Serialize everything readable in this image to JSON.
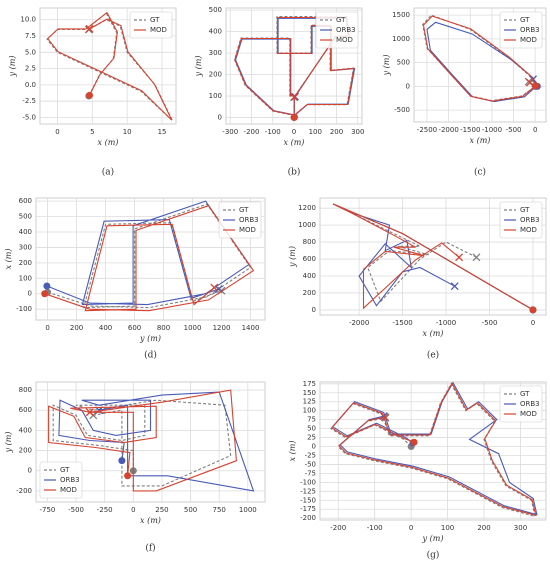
{
  "chart_data": [
    {
      "type": "line",
      "label": "(a)",
      "xlabel": "x (m)",
      "ylabel": "y (m)",
      "legend": "upper right",
      "grid": true,
      "xlim": [
        -2.5,
        17
      ],
      "ylim": [
        -6,
        11.8
      ],
      "xticks": [
        0,
        5,
        10,
        15
      ],
      "yticks": [
        {
          "value": -5,
          "label": "-5.0"
        },
        -2.5,
        {
          "value": 0,
          "label": "0.0"
        },
        2.5,
        {
          "value": 5,
          "label": "5.0"
        },
        7.5,
        {
          "value": 10,
          "label": "10.0"
        }
      ],
      "series": [
        {
          "name": "GT",
          "color": "#7f7f7f",
          "linestyle": "dashed",
          "x": [
            4.5,
            6,
            8,
            8.5,
            7,
            4,
            0,
            -1.5,
            0,
            4,
            8,
            12,
            16.5,
            14,
            10,
            9,
            7,
            4.5
          ],
          "values": [
            -1.7,
            1.5,
            4,
            8,
            11,
            8.5,
            8.5,
            7,
            5,
            3,
            1,
            -1,
            -5.5,
            0,
            5,
            9,
            10,
            8.5
          ]
        },
        {
          "name": "MOD",
          "color": "#d6432f",
          "linestyle": "solid",
          "x": [
            4.6,
            6.1,
            8.1,
            8.6,
            7.1,
            4.1,
            0.1,
            -1.4,
            0.1,
            4.1,
            8.1,
            12.1,
            16.4,
            13.9,
            10.1,
            9.1,
            7.1,
            4.6
          ],
          "values": [
            -1.6,
            1.6,
            4.1,
            8.1,
            11.1,
            8.6,
            8.6,
            7.1,
            5.1,
            3.1,
            1.1,
            -0.9,
            -5.4,
            0.1,
            5.1,
            9.1,
            10.1,
            8.6
          ]
        }
      ]
    },
    {
      "type": "line",
      "label": "(b)",
      "xlabel": "x (m)",
      "ylabel": "y (m)",
      "legend": "upper right",
      "grid": true,
      "xlim": [
        -320,
        320
      ],
      "ylim": [
        -30,
        510
      ],
      "xticks": [
        -300,
        -200,
        -100,
        0,
        100,
        200,
        300
      ],
      "yticks": [
        0,
        100,
        200,
        300,
        400,
        500
      ],
      "series": [
        {
          "name": "GT",
          "color": "#7f7f7f",
          "linestyle": "dashed",
          "x": [
            0,
            0,
            -20,
            -20,
            -250,
            -280,
            -230,
            -100,
            0,
            60,
            250,
            280,
            170,
            170,
            80,
            80,
            -80,
            -80,
            250,
            260,
            200,
            0
          ],
          "values": [
            0,
            100,
            100,
            370,
            370,
            270,
            150,
            30,
            10,
            60,
            60,
            230,
            220,
            430,
            430,
            300,
            300,
            470,
            470,
            380,
            380,
            95
          ]
        },
        {
          "name": "ORB3",
          "color": "#4a5bb7",
          "linestyle": "solid",
          "x": [
            2,
            2,
            -15,
            -15,
            -245,
            -275,
            -225,
            -95,
            5,
            65,
            255,
            285,
            175,
            175,
            85,
            85,
            -75,
            -75,
            245,
            255,
            195,
            5
          ],
          "values": [
            2,
            102,
            102,
            365,
            365,
            268,
            152,
            32,
            12,
            62,
            62,
            228,
            218,
            425,
            425,
            298,
            298,
            462,
            462,
            378,
            378,
            97
          ]
        },
        {
          "name": "MOD",
          "color": "#d6432f",
          "linestyle": "solid",
          "x": [
            1,
            1,
            -18,
            -18,
            -248,
            -278,
            -228,
            -98,
            2,
            62,
            252,
            282,
            172,
            172,
            82,
            82,
            -78,
            -78,
            248,
            258,
            198,
            2
          ],
          "values": [
            1,
            101,
            101,
            368,
            368,
            269,
            151,
            31,
            11,
            61,
            61,
            229,
            219,
            428,
            428,
            299,
            299,
            466,
            466,
            379,
            379,
            96
          ]
        }
      ]
    },
    {
      "type": "line",
      "label": "(c)",
      "xlabel": "x (m)",
      "ylabel": "y (m)",
      "legend": "upper right",
      "grid": true,
      "xlim": [
        -2800,
        250
      ],
      "ylim": [
        -750,
        1650
      ],
      "xticks": [
        -2500,
        -2000,
        -1500,
        -1000,
        -500,
        0
      ],
      "yticks": [
        -500,
        0,
        500,
        1000,
        1500
      ],
      "series": [
        {
          "name": "GT",
          "color": "#7f7f7f",
          "linestyle": "dashed",
          "x": [
            0,
            -100,
            -600,
            -1500,
            -2400,
            -2600,
            -2500,
            -2000,
            -1500,
            -1000,
            -300,
            0,
            -150
          ],
          "values": [
            0,
            200,
            600,
            1200,
            1500,
            1300,
            800,
            300,
            -200,
            -300,
            -200,
            0,
            100
          ]
        },
        {
          "name": "ORB3",
          "color": "#4a5bb7",
          "linestyle": "solid",
          "x": [
            50,
            -50,
            -550,
            -1450,
            -2300,
            -2500,
            -2420,
            -1950,
            -1450,
            -950,
            -250,
            50,
            -50
          ],
          "values": [
            0,
            180,
            560,
            1100,
            1350,
            1200,
            760,
            280,
            -220,
            -320,
            -220,
            20,
            150
          ]
        },
        {
          "name": "MOD",
          "color": "#d6432f",
          "linestyle": "solid",
          "x": [
            10,
            -90,
            -590,
            -1490,
            -2380,
            -2580,
            -2480,
            -1990,
            -1490,
            -990,
            -290,
            10,
            -120
          ],
          "values": [
            10,
            210,
            610,
            1210,
            1480,
            1290,
            790,
            290,
            -210,
            -310,
            -210,
            10,
            80
          ]
        }
      ]
    },
    {
      "type": "line",
      "label": "(d)",
      "xlabel": "y (m)",
      "ylabel": "x (m)",
      "legend": "upper right",
      "grid": true,
      "xlim": [
        -80,
        1500
      ],
      "ylim": [
        -170,
        620
      ],
      "xticks": [
        0,
        200,
        400,
        600,
        800,
        1000,
        1200,
        1400
      ],
      "yticks": [
        -100,
        0,
        100,
        200,
        300,
        400,
        500,
        600
      ],
      "series": [
        {
          "name": "GT",
          "color": "#7f7f7f",
          "linestyle": "dashed",
          "x": [
            0,
            300,
            700,
            1100,
            1400,
            1100,
            600,
            600,
            250,
            400,
            850,
            1000,
            1200
          ],
          "values": [
            10,
            -80,
            -90,
            -20,
            170,
            580,
            420,
            -80,
            -90,
            450,
            460,
            -50,
            20
          ]
        },
        {
          "name": "ORB3",
          "color": "#4a5bb7",
          "linestyle": "solid",
          "x": [
            -5,
            290,
            690,
            1090,
            1390,
            1090,
            590,
            590,
            240,
            390,
            840,
            990,
            1180
          ],
          "values": [
            50,
            -60,
            -70,
            0,
            190,
            600,
            440,
            -60,
            -70,
            470,
            480,
            -30,
            30
          ]
        },
        {
          "name": "MOD",
          "color": "#d6432f",
          "linestyle": "solid",
          "x": [
            -20,
            290,
            700,
            1110,
            1420,
            1110,
            610,
            610,
            260,
            410,
            860,
            1010,
            1150
          ],
          "values": [
            0,
            -100,
            -110,
            -40,
            150,
            570,
            410,
            -100,
            -110,
            440,
            450,
            -70,
            40
          ]
        }
      ]
    },
    {
      "type": "line",
      "label": "(e)",
      "xlabel": "x (m)",
      "ylabel": "y (m)",
      "legend": "upper right",
      "grid": true,
      "xlim": [
        -2450,
        150
      ],
      "ylim": [
        -60,
        1320
      ],
      "xticks": [
        -2000,
        -1500,
        -1000,
        -500,
        0
      ],
      "yticks": [
        0,
        200,
        400,
        600,
        800,
        1000,
        1200
      ],
      "series": [
        {
          "name": "GT",
          "color": "#7f7f7f",
          "linestyle": "dashed",
          "x": [
            0,
            -500,
            -1000,
            -1500,
            -2300,
            -2100,
            -1600,
            -1300,
            -1550,
            -1200,
            -1650,
            -1900,
            -1750,
            -1300,
            -1000,
            -650
          ],
          "values": [
            0,
            300,
            600,
            900,
            1250,
            1150,
            900,
            750,
            750,
            650,
            700,
            500,
            100,
            600,
            800,
            620
          ]
        },
        {
          "name": "ORB3",
          "color": "#4a5bb7",
          "linestyle": "solid",
          "x": [
            0,
            -500,
            -1000,
            -1500,
            -2300,
            -2100,
            -1650,
            -1700,
            -1450,
            -1400,
            -1700,
            -2000,
            -1800,
            -1500,
            -1300,
            -900
          ],
          "values": [
            0,
            300,
            600,
            900,
            1250,
            1150,
            1000,
            700,
            820,
            500,
            780,
            400,
            50,
            450,
            500,
            280
          ]
        },
        {
          "name": "MOD",
          "color": "#d6432f",
          "linestyle": "solid",
          "x": [
            0,
            -500,
            -1000,
            -1500,
            -2300,
            -2100,
            -1600,
            -1350,
            -1600,
            -1250,
            -1700,
            -1950,
            -1950,
            -1350,
            -1050,
            -850
          ],
          "values": [
            0,
            300,
            600,
            900,
            1250,
            1150,
            880,
            740,
            740,
            640,
            690,
            480,
            20,
            590,
            790,
            620
          ]
        }
      ]
    },
    {
      "type": "line",
      "label": "(f)",
      "xlabel": "x (m)",
      "ylabel": "y (m)",
      "legend": "lower left",
      "grid": true,
      "xlim": [
        -850,
        1150
      ],
      "ylim": [
        -310,
        880
      ],
      "xticks": [
        -750,
        -500,
        -250,
        0,
        250,
        500,
        750,
        1000
      ],
      "yticks": [
        -200,
        0,
        200,
        400,
        600,
        800
      ],
      "series": [
        {
          "name": "GT",
          "color": "#7f7f7f",
          "linestyle": "dashed",
          "x": [
            0,
            0,
            -300,
            -700,
            -700,
            -500,
            -400,
            -100,
            100,
            100,
            -500,
            -350,
            200,
            800,
            850,
            250,
            -100,
            -100,
            -350
          ],
          "values": [
            0,
            200,
            250,
            300,
            650,
            550,
            350,
            300,
            350,
            650,
            650,
            600,
            700,
            650,
            150,
            -150,
            -150,
            600,
            550
          ]
        },
        {
          "name": "ORB3",
          "color": "#4a5bb7",
          "linestyle": "solid",
          "x": [
            -100,
            -80,
            -380,
            -650,
            -640,
            -450,
            -350,
            -150,
            150,
            150,
            -450,
            -300,
            250,
            750,
            1050,
            300,
            -50,
            -50,
            -300
          ],
          "values": [
            100,
            280,
            300,
            350,
            700,
            600,
            400,
            350,
            400,
            700,
            700,
            650,
            750,
            780,
            -200,
            -50,
            -50,
            650,
            600
          ]
        },
        {
          "name": "MOD",
          "color": "#d6432f",
          "linestyle": "solid",
          "x": [
            -50,
            -30,
            -330,
            -740,
            -740,
            -520,
            -420,
            -80,
            200,
            200,
            -550,
            -380,
            250,
            850,
            900,
            200,
            0,
            0,
            -380
          ],
          "values": [
            -50,
            180,
            230,
            280,
            640,
            540,
            330,
            280,
            330,
            640,
            620,
            580,
            680,
            800,
            100,
            -200,
            -200,
            580,
            580
          ]
        }
      ]
    },
    {
      "type": "line",
      "label": "(g)",
      "xlabel": "y (m)",
      "ylabel": "x (m)",
      "legend": "upper right",
      "grid": true,
      "xlim": [
        -250,
        370
      ],
      "ylim": [
        -205,
        180
      ],
      "xticks": [
        -200,
        -100,
        0,
        100,
        200,
        300
      ],
      "yticks": [
        -200,
        -175,
        -150,
        -125,
        -100,
        -75,
        -50,
        -25,
        0,
        25,
        50,
        75,
        100,
        125,
        150,
        175
      ],
      "series": [
        {
          "name": "GT",
          "color": "#7f7f7f",
          "linestyle": "dashed",
          "x": [
            0,
            -20,
            -100,
            -180,
            -220,
            -160,
            -80,
            -60,
            50,
            80,
            110,
            150,
            180,
            230,
            200,
            220,
            260,
            330,
            340,
            250,
            100,
            0,
            -100,
            -180,
            -200,
            -120,
            -70
          ],
          "values": [
            0,
            20,
            60,
            25,
            50,
            120,
            90,
            30,
            30,
            120,
            175,
            100,
            120,
            70,
            20,
            -40,
            -110,
            -150,
            -195,
            -170,
            -90,
            -60,
            -40,
            -20,
            0,
            70,
            80
          ]
        },
        {
          "name": "ORB3",
          "color": "#4a5bb7",
          "linestyle": "solid",
          "x": [
            5,
            -15,
            -95,
            -175,
            -215,
            -155,
            -75,
            -55,
            55,
            85,
            115,
            155,
            185,
            235,
            160,
            240,
            270,
            335,
            345,
            255,
            105,
            5,
            -95,
            -175,
            -195,
            -115,
            -75
          ],
          "values": [
            10,
            25,
            65,
            30,
            55,
            125,
            95,
            35,
            35,
            125,
            178,
            105,
            125,
            75,
            20,
            -20,
            -100,
            -145,
            -190,
            -165,
            -85,
            -55,
            -35,
            -15,
            5,
            75,
            85
          ]
        },
        {
          "name": "MOD",
          "color": "#d6432f",
          "linestyle": "solid",
          "x": [
            8,
            -18,
            -98,
            -178,
            -218,
            -158,
            -78,
            -58,
            52,
            82,
            112,
            152,
            182,
            232,
            202,
            222,
            262,
            332,
            342,
            252,
            102,
            2,
            -98,
            -178,
            -198,
            -118,
            -72
          ],
          "values": [
            12,
            22,
            62,
            27,
            52,
            122,
            92,
            32,
            32,
            122,
            176,
            102,
            122,
            72,
            22,
            -38,
            -108,
            -148,
            -192,
            -168,
            -88,
            -58,
            -38,
            -18,
            2,
            72,
            82
          ]
        }
      ]
    }
  ]
}
